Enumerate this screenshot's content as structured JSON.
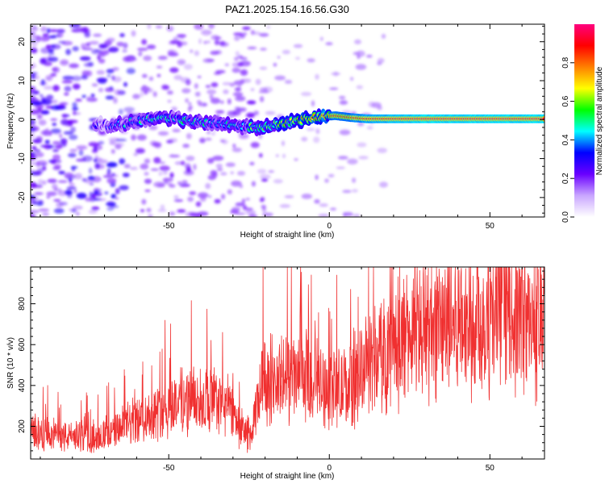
{
  "figure_title": "PAZ1.2025.154.16.56.G30",
  "colors": {
    "snr_line": "#f03030",
    "axis": "#000000",
    "background": "#ffffff"
  },
  "chart_data": [
    {
      "type": "heatmap",
      "xlabel": "Height of straight line (km)",
      "ylabel": "Frequency (Hz)",
      "xlim": [
        -93,
        67
      ],
      "ylim": [
        -25,
        24.5
      ],
      "xticks": [
        -50,
        0,
        50
      ],
      "xtick_labels": [
        "-50",
        "0",
        "50"
      ],
      "yticks": [
        -20,
        -10,
        0,
        10,
        20
      ],
      "ytick_labels": [
        "-20",
        "-10",
        "0",
        "10",
        "20"
      ],
      "colorbar": {
        "label": "Normalized spectral amplitude",
        "range": [
          0,
          1
        ],
        "ticks": [
          0.0,
          0.2,
          0.4,
          0.6,
          0.8
        ],
        "tick_labels": [
          "0.0",
          "0.2",
          "0.4",
          "0.6",
          "0.8"
        ],
        "colormap": [
          "#ffffff",
          "#c9a6ff",
          "#6a00ff",
          "#0000ff",
          "#00ffff",
          "#00ff00",
          "#ffff00",
          "#ff8000",
          "#ff0000",
          "#ff007f"
        ]
      },
      "ridge": {
        "x": [
          -73,
          -68,
          -63,
          -58,
          -53,
          -48,
          -43,
          -38,
          -33,
          -28,
          -23,
          -18,
          -13,
          -8,
          -3,
          2,
          7,
          12,
          20,
          30,
          40,
          50,
          60,
          67
        ],
        "freq": [
          -1.2,
          -1.5,
          -1.0,
          0.0,
          0.5,
          0.2,
          -0.5,
          -0.8,
          -1.0,
          -1.5,
          -2.2,
          -1.5,
          -0.8,
          0.0,
          0.8,
          1.0,
          0.5,
          0.2,
          0.2,
          0.2,
          0.2,
          0.2,
          0.2,
          0.2
        ],
        "amplitude": [
          0.25,
          0.3,
          0.35,
          0.45,
          0.45,
          0.45,
          0.5,
          0.45,
          0.45,
          0.4,
          0.55,
          0.6,
          0.65,
          0.7,
          0.78,
          0.85,
          0.85,
          0.9,
          0.92,
          0.95,
          0.95,
          0.95,
          0.95,
          0.95
        ]
      }
    },
    {
      "type": "line",
      "xlabel": "Height of straight line (km)",
      "ylabel": "SNR (10 * v/v)",
      "xlim": [
        -93,
        67
      ],
      "ylim": [
        40,
        980
      ],
      "xticks": [
        -50,
        0,
        50
      ],
      "xtick_labels": [
        "-50",
        "0",
        "50"
      ],
      "yticks": [
        200,
        400,
        600,
        800
      ],
      "ytick_labels": [
        "200",
        "400",
        "600",
        "800"
      ],
      "series": [
        {
          "x": [
            -93,
            -90,
            -85,
            -80,
            -75,
            -70,
            -65,
            -60,
            -55,
            -50,
            -45,
            -40,
            -35,
            -30,
            -27,
            -24,
            -22,
            -20,
            -17,
            -15,
            -10,
            -5,
            0,
            5,
            10,
            15,
            20,
            25,
            30,
            35,
            40,
            45,
            50,
            55,
            60,
            67
          ],
          "values": [
            180,
            170,
            155,
            150,
            150,
            160,
            190,
            230,
            260,
            300,
            330,
            330,
            320,
            280,
            180,
            160,
            350,
            430,
            420,
            430,
            430,
            420,
            390,
            380,
            480,
            540,
            600,
            640,
            680,
            700,
            710,
            720,
            720,
            740,
            720,
            700
          ]
        }
      ]
    }
  ]
}
